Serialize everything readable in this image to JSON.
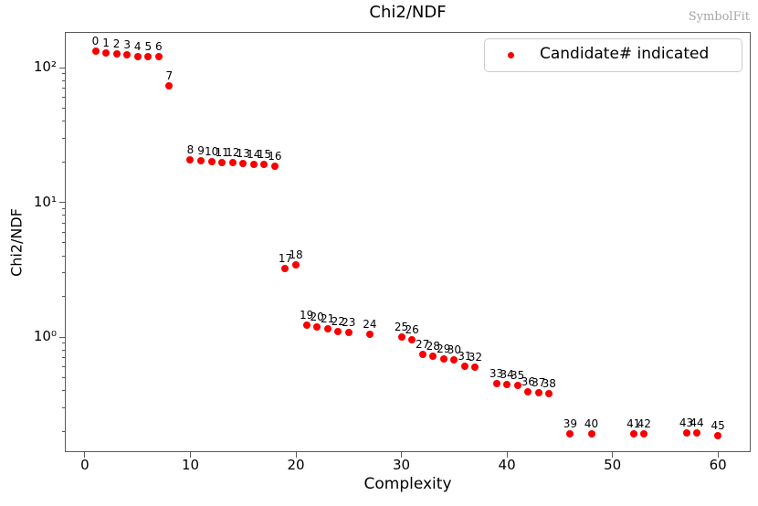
{
  "title": "Chi2/NDF",
  "watermark": "SymbolFit",
  "legend": {
    "label": "Candidate# indicated"
  },
  "colors": {
    "point": "#f80000",
    "axis": "#5a5a5a",
    "watermark": "#a6a6a6"
  },
  "chart_data": {
    "type": "scatter",
    "title": "Chi2/NDF",
    "xlabel": "Complexity",
    "ylabel": "Chi2/NDF",
    "yscale": "log",
    "grid": false,
    "xlim": [
      -1.9,
      63.1
    ],
    "ylim": [
      0.14,
      184
    ],
    "x_ticks": [
      0,
      10,
      20,
      30,
      40,
      50,
      60
    ],
    "y_ticks": [
      {
        "value": 100,
        "label": "10²"
      },
      {
        "value": 10,
        "label": "10¹"
      },
      {
        "value": 1,
        "label": "10⁰"
      }
    ],
    "legend": "Candidate# indicated",
    "legend_position": "upper right",
    "point_annotation": "candidate index shown above each marker",
    "points": [
      {
        "candidate": "0",
        "x": 1,
        "y": 132
      },
      {
        "candidate": "1",
        "x": 2,
        "y": 128
      },
      {
        "candidate": "2",
        "x": 3,
        "y": 126
      },
      {
        "candidate": "3",
        "x": 4,
        "y": 124
      },
      {
        "candidate": "4",
        "x": 5,
        "y": 121
      },
      {
        "candidate": "5",
        "x": 6,
        "y": 120
      },
      {
        "candidate": "6",
        "x": 7,
        "y": 121
      },
      {
        "candidate": "7",
        "x": 8,
        "y": 73
      },
      {
        "candidate": "8",
        "x": 10,
        "y": 20.6
      },
      {
        "candidate": "9",
        "x": 11,
        "y": 20.3
      },
      {
        "candidate": "10",
        "x": 12,
        "y": 20.0
      },
      {
        "candidate": "11",
        "x": 13,
        "y": 19.8
      },
      {
        "candidate": "12",
        "x": 14,
        "y": 19.6
      },
      {
        "candidate": "13",
        "x": 15,
        "y": 19.4
      },
      {
        "candidate": "14",
        "x": 16,
        "y": 19.2
      },
      {
        "candidate": "15",
        "x": 17,
        "y": 19.0
      },
      {
        "candidate": "16",
        "x": 18,
        "y": 18.6
      },
      {
        "candidate": "17",
        "x": 19,
        "y": 3.25
      },
      {
        "candidate": "18",
        "x": 20,
        "y": 3.45
      },
      {
        "candidate": "19",
        "x": 21,
        "y": 1.22
      },
      {
        "candidate": "20",
        "x": 22,
        "y": 1.19
      },
      {
        "candidate": "21",
        "x": 23,
        "y": 1.16
      },
      {
        "candidate": "22",
        "x": 24,
        "y": 1.1
      },
      {
        "candidate": "23",
        "x": 25,
        "y": 1.08
      },
      {
        "candidate": "24",
        "x": 27,
        "y": 1.05
      },
      {
        "candidate": "25",
        "x": 30,
        "y": 1.0
      },
      {
        "candidate": "26",
        "x": 31,
        "y": 0.95
      },
      {
        "candidate": "27",
        "x": 32,
        "y": 0.74
      },
      {
        "candidate": "28",
        "x": 33,
        "y": 0.72
      },
      {
        "candidate": "29",
        "x": 34,
        "y": 0.69
      },
      {
        "candidate": "30",
        "x": 35,
        "y": 0.675
      },
      {
        "candidate": "31",
        "x": 36,
        "y": 0.61
      },
      {
        "candidate": "32",
        "x": 37,
        "y": 0.6
      },
      {
        "candidate": "33",
        "x": 39,
        "y": 0.45
      },
      {
        "candidate": "34",
        "x": 40,
        "y": 0.445
      },
      {
        "candidate": "35",
        "x": 41,
        "y": 0.44
      },
      {
        "candidate": "36",
        "x": 42,
        "y": 0.39
      },
      {
        "candidate": "37",
        "x": 43,
        "y": 0.385
      },
      {
        "candidate": "38",
        "x": 44,
        "y": 0.38
      },
      {
        "candidate": "39",
        "x": 46,
        "y": 0.19
      },
      {
        "candidate": "40",
        "x": 48,
        "y": 0.19
      },
      {
        "candidate": "41",
        "x": 52,
        "y": 0.19
      },
      {
        "candidate": "42",
        "x": 53,
        "y": 0.19
      },
      {
        "candidate": "43",
        "x": 57,
        "y": 0.195
      },
      {
        "candidate": "44",
        "x": 58,
        "y": 0.195
      },
      {
        "candidate": "45",
        "x": 60,
        "y": 0.185
      }
    ]
  }
}
